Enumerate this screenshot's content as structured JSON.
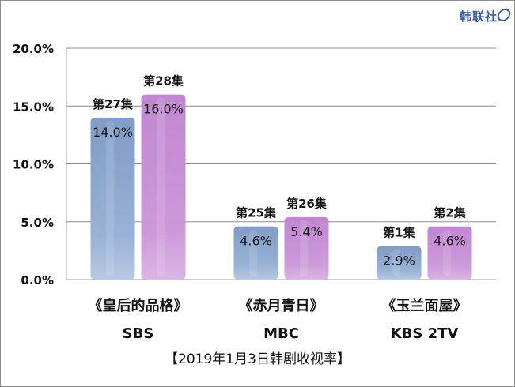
{
  "brand": {
    "logo_text": "韩联社"
  },
  "chart_data": {
    "type": "bar",
    "categories": [
      {
        "title": "《皇后的品格》",
        "channel": "SBS"
      },
      {
        "title": "《赤月青日》",
        "channel": "MBC"
      },
      {
        "title": "《玉兰面屋》",
        "channel": "KBS 2TV"
      }
    ],
    "series_colors": [
      "#8aa6cc",
      "#c48cd0"
    ],
    "bars": [
      [
        {
          "episode": "第27集",
          "value": 14.0,
          "label": "14.0%"
        },
        {
          "episode": "第28集",
          "value": 16.0,
          "label": "16.0%"
        }
      ],
      [
        {
          "episode": "第25集",
          "value": 4.6,
          "label": "4.6%"
        },
        {
          "episode": "第26集",
          "value": 5.4,
          "label": "5.4%"
        }
      ],
      [
        {
          "episode": "第1集",
          "value": 2.9,
          "label": "2.9%"
        },
        {
          "episode": "第2集",
          "value": 4.6,
          "label": "4.6%"
        }
      ]
    ],
    "y_ticks": [
      {
        "value": 0,
        "label": "0.0%"
      },
      {
        "value": 5,
        "label": "5.0%"
      },
      {
        "value": 10,
        "label": "10.0%"
      },
      {
        "value": 15,
        "label": "15.0%"
      },
      {
        "value": 20,
        "label": "20.0%"
      }
    ],
    "ylim": [
      0,
      20
    ],
    "grid": true,
    "caption": "【2019年1月3日韩剧收视率】"
  }
}
